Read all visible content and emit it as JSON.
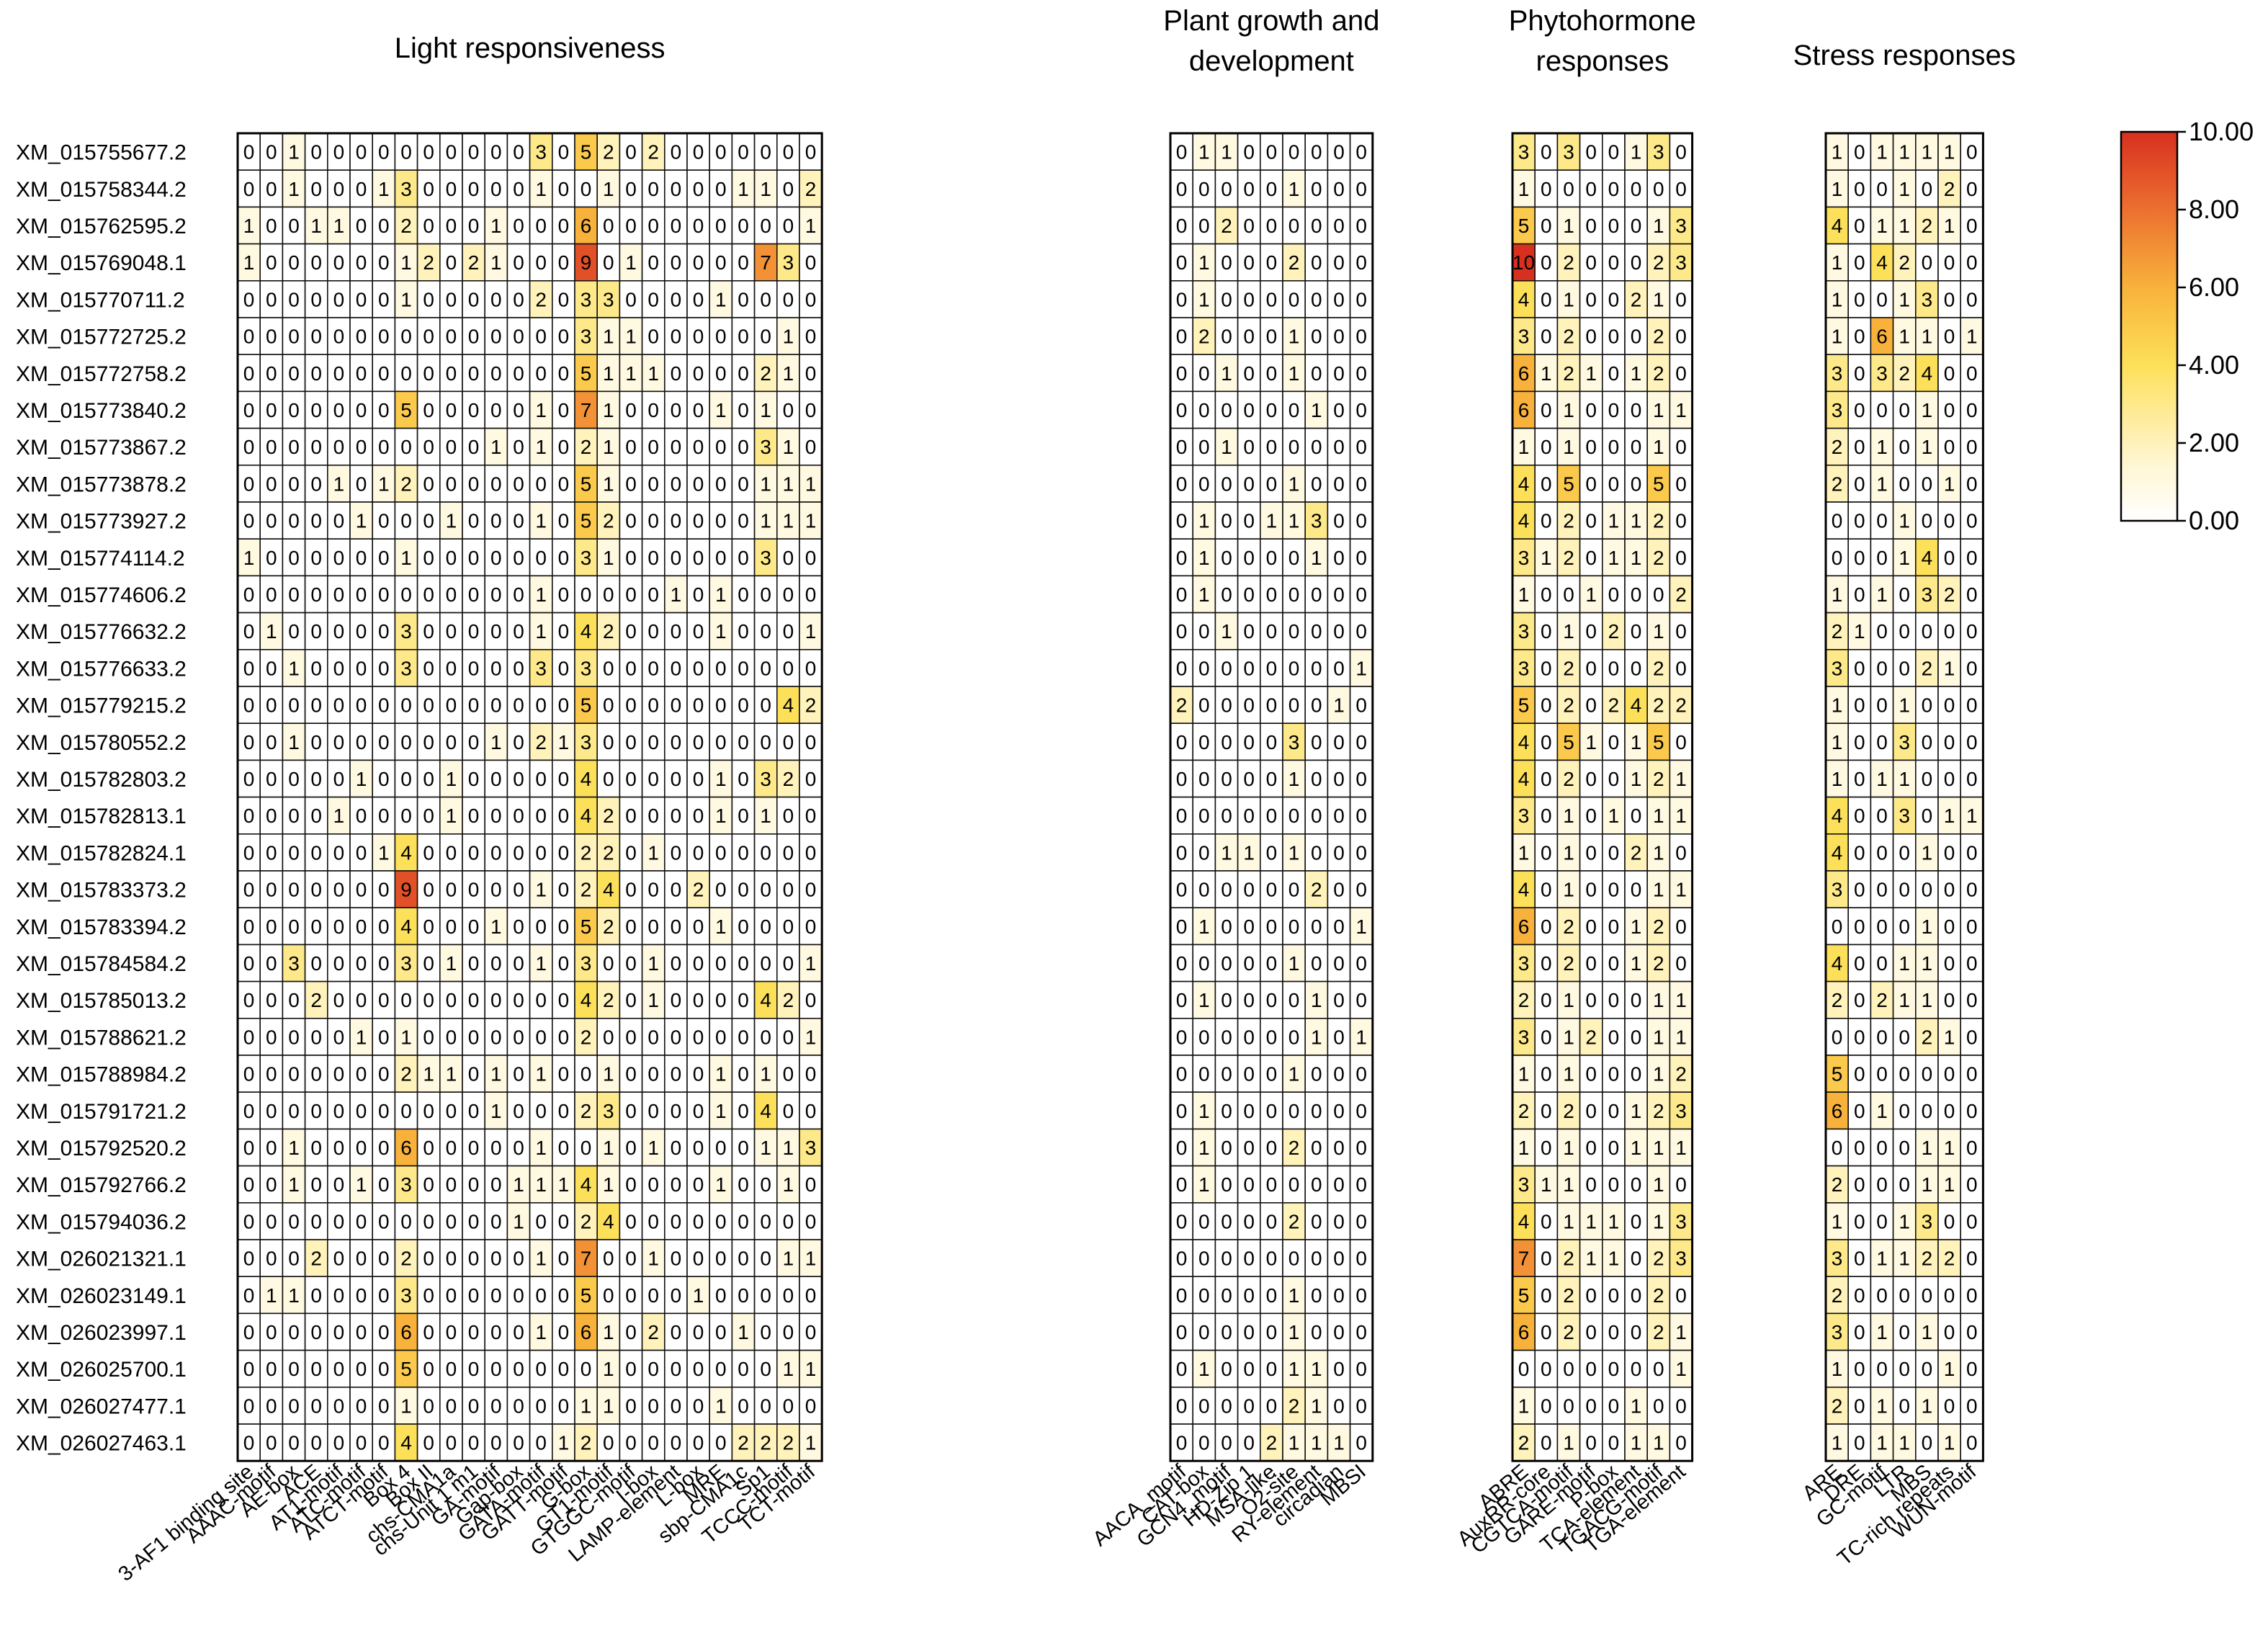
{
  "chart_data": {
    "type": "heatmap",
    "groups": [
      {
        "title": "Light responsiveness",
        "columns": [
          "3-AF1 binding site",
          "AAAC-motif",
          "AE-box",
          "ACE",
          "AT1-motif",
          "ATC-motif",
          "ATCT-motif",
          "Box 4",
          "Box II",
          "chs-CMA1a",
          "chs-Unit 1 m1",
          "GA-motif",
          "Gap-box",
          "GATA-motif",
          "GATT-motif",
          "G-box",
          "GT1-motif",
          "GTGGC-motif",
          "I-box",
          "LAMP-element",
          "L-box",
          "MRE",
          "sbp-CMA1c",
          "Sp1",
          "TCCC-motif",
          "TCT-motif"
        ]
      },
      {
        "title": "Plant growth and development",
        "columns": [
          "AACA_motif",
          "CAT-box",
          "GCN4_motif",
          "HD-Zip 1",
          "MSA-like",
          "O2-site",
          "RY-element",
          "circadian",
          "MBSI"
        ]
      },
      {
        "title": "Phytohormone responses",
        "columns": [
          "ABRE",
          "AuxRR-core",
          "CGTCA-motif",
          "GARE-motif",
          "P-box",
          "TCA-element",
          "TGACG-motif",
          "TGA-element"
        ]
      },
      {
        "title": "Stress responses",
        "columns": [
          "ARE",
          "DRE",
          "GC-motif",
          "LTR",
          "MBS",
          "TC-rich repeats",
          "WUN-motif"
        ]
      }
    ],
    "rows": [
      "XM_015755677.2",
      "XM_015758344.2",
      "XM_015762595.2",
      "XM_015769048.1",
      "XM_015770711.2",
      "XM_015772725.2",
      "XM_015772758.2",
      "XM_015773840.2",
      "XM_015773867.2",
      "XM_015773878.2",
      "XM_015773927.2",
      "XM_015774114.2",
      "XM_015774606.2",
      "XM_015776632.2",
      "XM_015776633.2",
      "XM_015779215.2",
      "XM_015780552.2",
      "XM_015782803.2",
      "XM_015782813.1",
      "XM_015782824.1",
      "XM_015783373.2",
      "XM_015783394.2",
      "XM_015784584.2",
      "XM_015785013.2",
      "XM_015788621.2",
      "XM_015788984.2",
      "XM_015791721.2",
      "XM_015792520.2",
      "XM_015792766.2",
      "XM_015794036.2",
      "XM_026021321.1",
      "XM_026023149.1",
      "XM_026023997.1",
      "XM_026025700.1",
      "XM_026027477.1",
      "XM_026027463.1"
    ],
    "values": [
      [
        "00100000000003052020000000",
        "011000000",
        "30300130",
        "1011110"
      ],
      [
        "00100013000001001000001102",
        "000001000",
        "10000000",
        "1001020"
      ],
      [
        "10011002000100060000000001",
        "002000000",
        "50100013",
        "4011210"
      ],
      [
        "10000001202100090100000730",
        "010002000",
        "10200023",
        "1042000"
      ],
      [
        "00000001000002033000010000",
        "010000000",
        "40100210",
        "1001300"
      ],
      [
        "00000000000000031100000010",
        "020001000",
        "30200020",
        "1061101"
      ],
      [
        "00000000000000051110000210",
        "001001000",
        "61210120",
        "3032400"
      ],
      [
        "00000005000001071000010100",
        "000000100",
        "60100011",
        "3000100"
      ],
      [
        "00000000000101021000000310",
        "001000000",
        "10100010",
        "2010100"
      ],
      [
        "00001012000000051000000111",
        "000001000",
        "40500050",
        "2010010"
      ],
      [
        "00000100010001052000000111",
        "010011300",
        "40201120",
        "0001000"
      ],
      [
        "10000001000000031000000300",
        "010000100",
        "31201120",
        "0001400"
      ],
      [
        "00000000000001000001010000",
        "010000000",
        "10010002",
        "1010320"
      ],
      [
        "01000003000001042000010001",
        "001000000",
        "30102010",
        "2100000"
      ],
      [
        "00100003000003030000000000",
        "000000001",
        "30200020",
        "3000210"
      ],
      [
        "00000000000000050000000042",
        "200000010",
        "50202422",
        "1001000"
      ],
      [
        "00100000000102130000000000",
        "000003000",
        "40510150",
        "1003000"
      ],
      [
        "00000100010000040000010320",
        "000001000",
        "40200121",
        "1011000"
      ],
      [
        "00001000010000042000010100",
        "000000000",
        "30101011",
        "4003011"
      ],
      [
        "00000014000000022010000000",
        "001101000",
        "10100210",
        "4000100"
      ],
      [
        "00000009000001024000200000",
        "000000200",
        "40100011",
        "3000000"
      ],
      [
        "00000004000100052000010000",
        "010000001",
        "60200120",
        "0000100"
      ],
      [
        "00300003010001030010000001",
        "000001000",
        "30200120",
        "4001100"
      ],
      [
        "00020000000000042010000420",
        "010000100",
        "20100011",
        "2021100"
      ],
      [
        "00000101000000020000000001",
        "000000101",
        "30120011",
        "0000210"
      ],
      [
        "00000002110101001000010100",
        "000001000",
        "10100012",
        "5000000"
      ],
      [
        "00000000000100023000010400",
        "010000000",
        "20200123",
        "6010000"
      ],
      [
        "00100006000001001010000113",
        "010002000",
        "10100111",
        "0000110"
      ],
      [
        "00100103000011141000010010",
        "010000000",
        "31100010",
        "2000110"
      ],
      [
        "00000000000010024000000000",
        "000002000",
        "40111013",
        "1001300"
      ],
      [
        "00020002000001070010000011",
        "000000000",
        "70211023",
        "3011220"
      ],
      [
        "01100003000000050000100000",
        "000001000",
        "50200020",
        "2000000"
      ],
      [
        "00000006000001061020001000",
        "000001000",
        "60200021",
        "3010100"
      ],
      [
        "00000005000000001000000011",
        "010001100",
        "00000001",
        "1000010"
      ],
      [
        "00000001000000011000010000",
        "000002100",
        "10000100",
        "2010100"
      ],
      [
        "00000004000000120000002221",
        "000021110",
        "20100110",
        "1011010"
      ]
    ],
    "colorbar": {
      "min": 0,
      "max": 10,
      "ticks": [
        "0.00",
        "2.00",
        "4.00",
        "6.00",
        "8.00",
        "10.00"
      ]
    },
    "colors": {
      "low": "#ffffff",
      "mid": "#fcd135",
      "high": "#d7301f",
      "grid": "#111111"
    }
  }
}
